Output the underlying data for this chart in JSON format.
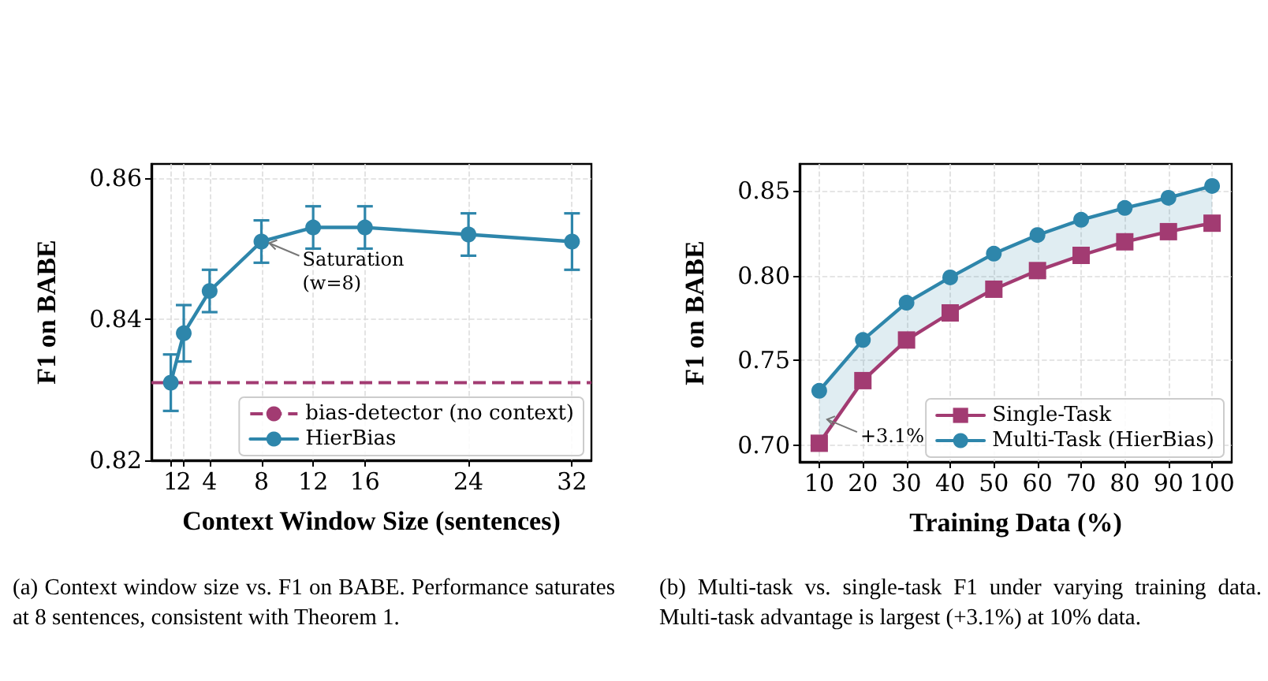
{
  "chart_data": [
    {
      "type": "line",
      "xlabel": "Context Window Size (sentences)",
      "ylabel": "F1 on BABE",
      "x": [
        1,
        2,
        4,
        8,
        12,
        16,
        24,
        32
      ],
      "series": [
        {
          "name": "HierBias",
          "color": "#2e86ab",
          "marker": "circle",
          "values": [
            0.831,
            0.838,
            0.844,
            0.851,
            0.853,
            0.853,
            0.852,
            0.851
          ],
          "errors": [
            0.004,
            0.004,
            0.003,
            0.003,
            0.003,
            0.003,
            0.003,
            0.004
          ]
        }
      ],
      "xlim": [
        -0.5,
        33.5
      ],
      "xticks": [
        1,
        2,
        4,
        8,
        12,
        16,
        24,
        32
      ],
      "ylim": [
        0.82,
        0.862
      ],
      "yticks": [
        0.82,
        0.84,
        0.86
      ],
      "ref_lines": [
        {
          "axis": "y",
          "value": 0.831,
          "label": "bias-detector (no context)",
          "color": "#a23b72",
          "line_style": "dashed"
        }
      ],
      "annotations": [
        {
          "text": "Saturation\n(w=8)",
          "x": 8,
          "y": 0.851
        },
        "(a) Context window size vs. F1 on BABE. Performance saturates at 8 sentences, consistent with Theorem 1."
      ],
      "grid": true,
      "legend": "lower right",
      "line_style": "solid"
    },
    {
      "type": "line",
      "xlabel": "Training Data (%)",
      "ylabel": "F1 on BABE",
      "x": [
        10,
        20,
        30,
        40,
        50,
        60,
        70,
        80,
        90,
        100
      ],
      "series": [
        {
          "name": "Single-Task",
          "color": "#a23b72",
          "marker": "square",
          "values": [
            0.701,
            0.738,
            0.762,
            0.778,
            0.792,
            0.803,
            0.812,
            0.82,
            0.826,
            0.831
          ]
        },
        {
          "name": "Multi-Task (HierBias)",
          "color": "#2e86ab",
          "marker": "circle",
          "values": [
            0.732,
            0.762,
            0.784,
            0.799,
            0.813,
            0.824,
            0.833,
            0.84,
            0.846,
            0.853
          ],
          "lower": [
            0.701,
            0.738,
            0.762,
            0.778,
            0.792,
            0.803,
            0.812,
            0.82,
            0.826,
            0.831
          ],
          "upper": [
            0.732,
            0.762,
            0.784,
            0.799,
            0.813,
            0.824,
            0.833,
            0.84,
            0.846,
            0.853
          ]
        }
      ],
      "xlim": [
        5.5,
        104.5
      ],
      "xticks": [
        10,
        20,
        30,
        40,
        50,
        60,
        70,
        80,
        90,
        100
      ],
      "ylim": [
        0.69,
        0.866
      ],
      "yticks": [
        {
          "value": 0.7,
          "label": "0.70"
        },
        0.75,
        {
          "value": 0.8,
          "label": "0.80"
        },
        0.85
      ],
      "annotations": [
        {
          "text": "+3.1%",
          "x": 10,
          "y": 0.716
        },
        "(b) Multi-task vs. single-task F1 under varying training data. Multi-task advantage is largest (+3.1%) at 10% data."
      ],
      "grid": true,
      "legend": "lower right",
      "line_style": "solid"
    }
  ]
}
